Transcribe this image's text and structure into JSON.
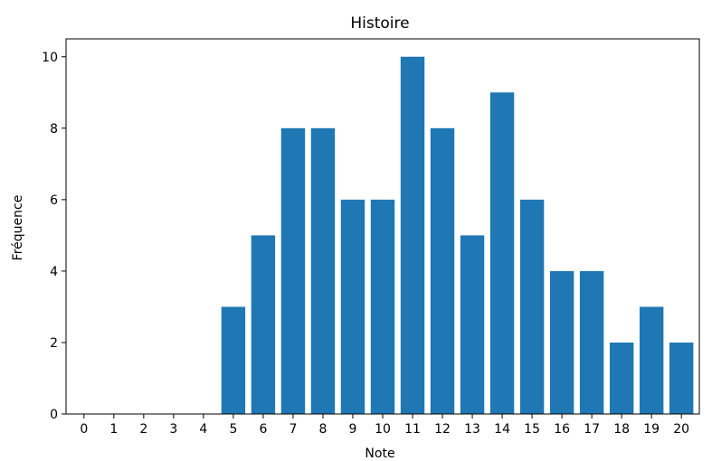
{
  "chart_data": {
    "type": "bar",
    "title": "Histoire",
    "xlabel": "Note",
    "ylabel": "Fréquence",
    "categories": [
      "0",
      "1",
      "2",
      "3",
      "4",
      "5",
      "6",
      "7",
      "8",
      "9",
      "10",
      "11",
      "12",
      "13",
      "14",
      "15",
      "16",
      "17",
      "18",
      "19",
      "20"
    ],
    "values": [
      0,
      0,
      0,
      0,
      0,
      3,
      5,
      8,
      8,
      6,
      6,
      10,
      8,
      5,
      9,
      6,
      4,
      4,
      2,
      3,
      2
    ],
    "ylim": [
      0,
      10.5
    ],
    "yticks": [
      0,
      2,
      4,
      6,
      8,
      10
    ],
    "bar_color": "#1f77b4",
    "grid": false
  }
}
